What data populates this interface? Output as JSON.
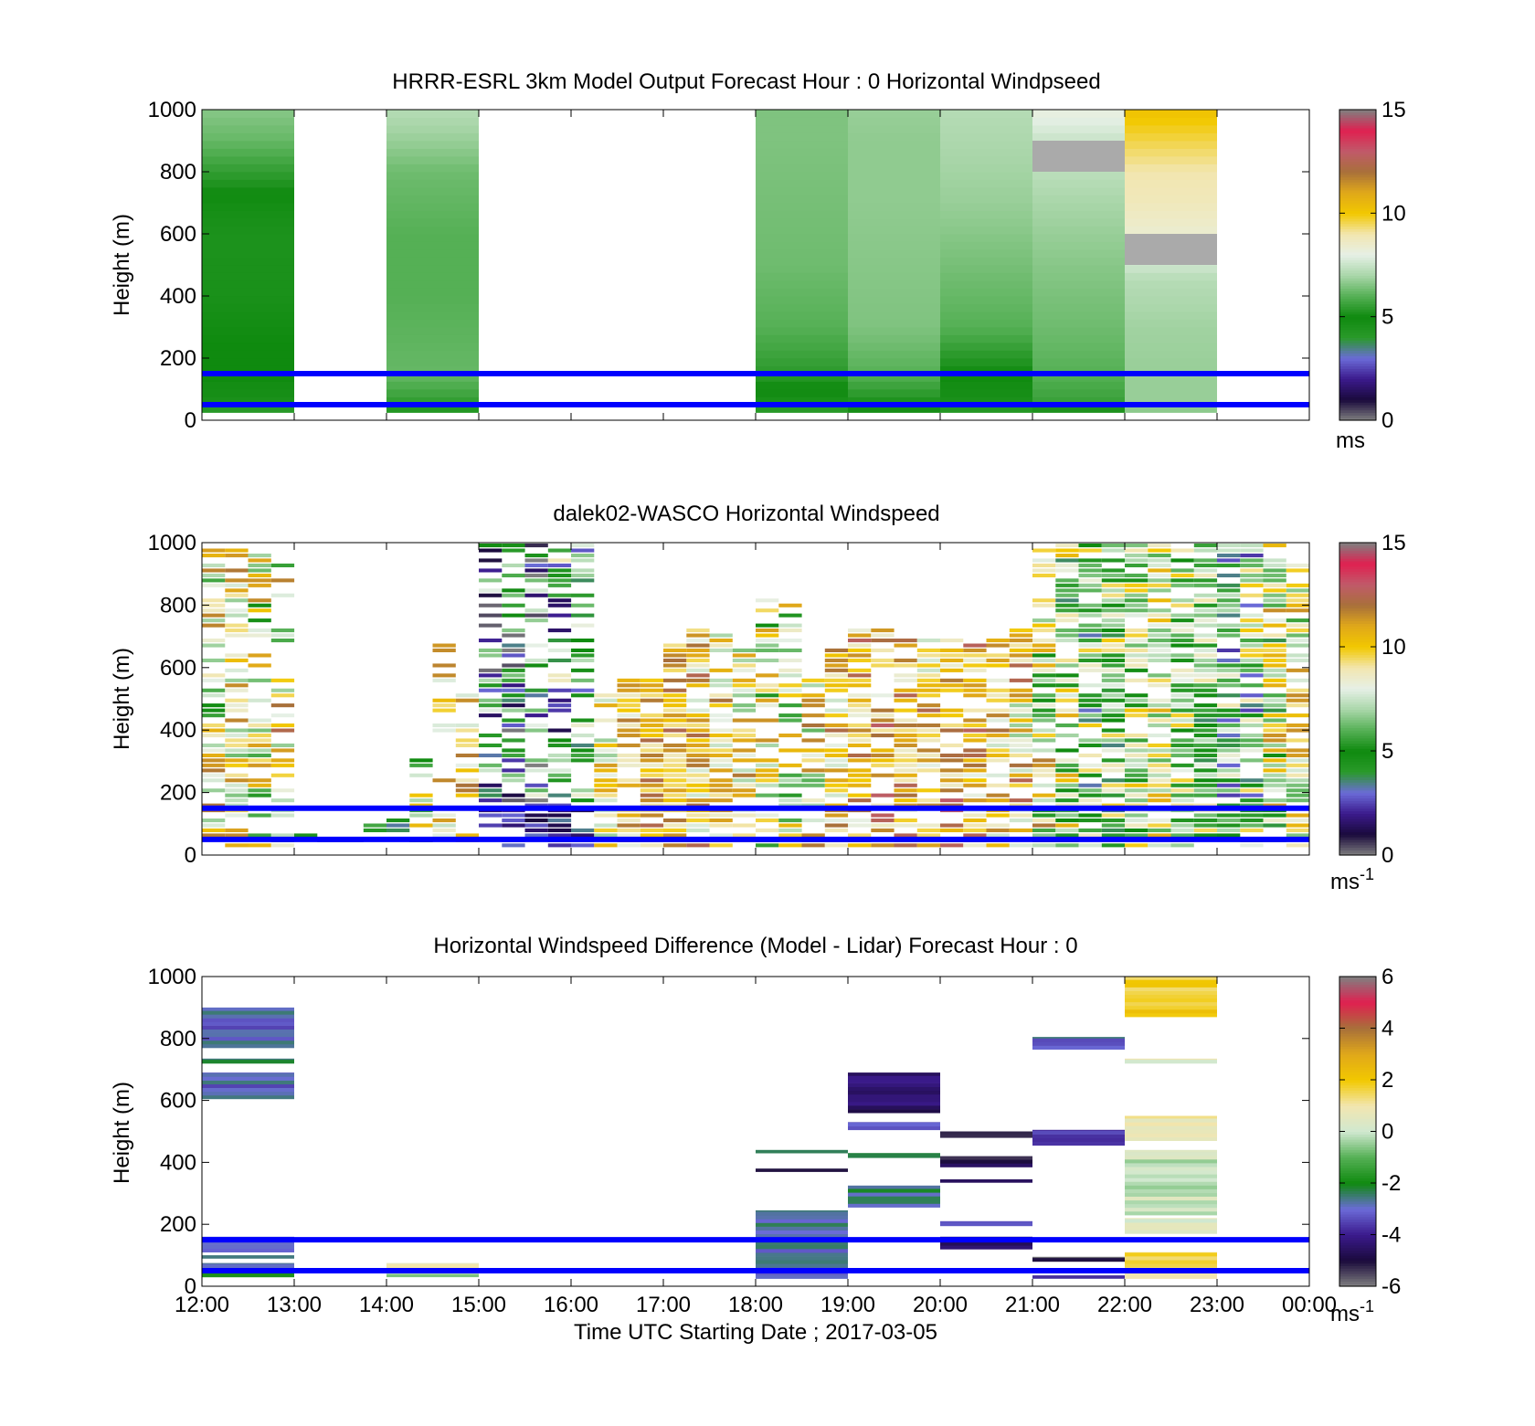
{
  "figure": {
    "xlabel": "Time UTC  Starting Date ; 2017-03-05",
    "x_ticks": [
      "12:00",
      "13:00",
      "14:00",
      "15:00",
      "16:00",
      "17:00",
      "18:00",
      "19:00",
      "20:00",
      "21:00",
      "22:00",
      "23:00",
      "00:00"
    ],
    "boundary_lines_m": [
      50,
      150
    ],
    "boundary_line_color": "#0000ff"
  },
  "colormap_windspeed": [
    "#808080",
    "#1a0a3c",
    "#3b1a8c",
    "#6b6bd8",
    "#2a9a2a",
    "#0f8a0f",
    "#55b055",
    "#a9d6a9",
    "#e6f0e6",
    "#f2e6b0",
    "#f2c800",
    "#e0a81a",
    "#a8703a",
    "#c05a6a",
    "#e02050",
    "#808080"
  ],
  "colormap_difference": [
    "#808080",
    "#1a0a3c",
    "#3b1a8c",
    "#6b6bd8",
    "#0f8a0f",
    "#55b055",
    "#d0e8d0",
    "#f2e6b0",
    "#f2c800",
    "#e0a81a",
    "#a8703a",
    "#e02050",
    "#808080"
  ],
  "chart_data": [
    {
      "type": "heatmap",
      "title": "HRRR-ESRL 3km Model Output   Forecast Hour : 0 Horizontal Windpseed",
      "ylabel": "Height (m)",
      "ylim": [
        0,
        1000
      ],
      "yticks": [
        0,
        200,
        400,
        600,
        800,
        1000
      ],
      "xlim_hours": [
        12,
        24
      ],
      "colorbar": {
        "min": 0,
        "max": 15,
        "ticks": [
          "0",
          "5",
          "10",
          "15"
        ],
        "unit": "ms"
      },
      "columns": [
        {
          "t0": 12,
          "t1": 13,
          "z0": 25,
          "z1": 1000,
          "profile": [
            [
              25,
              3.8
            ],
            [
              60,
              4.6
            ],
            [
              150,
              5.0
            ],
            [
              250,
              5.0
            ],
            [
              400,
              4.6
            ],
            [
              600,
              4.5
            ],
            [
              700,
              4.8
            ],
            [
              800,
              5.5
            ],
            [
              900,
              6.2
            ],
            [
              1000,
              6.6
            ]
          ]
        },
        {
          "t0": 14,
          "t1": 15,
          "z0": 25,
          "z1": 1000,
          "profile": [
            [
              25,
              3.5
            ],
            [
              60,
              5.5
            ],
            [
              150,
              6.2
            ],
            [
              400,
              6.0
            ],
            [
              600,
              6.0
            ],
            [
              800,
              6.3
            ],
            [
              900,
              6.8
            ],
            [
              1000,
              7.2
            ]
          ]
        },
        {
          "t0": 18,
          "t1": 19,
          "z0": 25,
          "z1": 1000,
          "profile": [
            [
              25,
              3.8
            ],
            [
              60,
              4.6
            ],
            [
              150,
              5.4
            ],
            [
              300,
              6.0
            ],
            [
              500,
              6.3
            ],
            [
              700,
              6.4
            ],
            [
              900,
              6.5
            ],
            [
              1000,
              6.5
            ]
          ]
        },
        {
          "t0": 19,
          "t1": 20,
          "z0": 25,
          "z1": 1000,
          "profile": [
            [
              25,
              4.5
            ],
            [
              60,
              5.2
            ],
            [
              150,
              6.0
            ],
            [
              300,
              6.5
            ],
            [
              500,
              6.6
            ],
            [
              700,
              6.7
            ],
            [
              900,
              6.7
            ],
            [
              1000,
              6.8
            ]
          ]
        },
        {
          "t0": 20,
          "t1": 21,
          "z0": 25,
          "z1": 1000,
          "profile": [
            [
              25,
              4.0
            ],
            [
              60,
              4.6
            ],
            [
              150,
              5.0
            ],
            [
              300,
              6.0
            ],
            [
              500,
              6.4
            ],
            [
              700,
              6.8
            ],
            [
              850,
              7.0
            ],
            [
              1000,
              7.2
            ]
          ]
        },
        {
          "t0": 21,
          "t1": 22,
          "z0": 25,
          "z1": 1000,
          "profile": [
            [
              25,
              5.0
            ],
            [
              60,
              5.6
            ],
            [
              150,
              6.0
            ],
            [
              300,
              6.3
            ],
            [
              500,
              6.6
            ],
            [
              700,
              7.0
            ],
            [
              800,
              7.3
            ],
            [
              900,
              7.5
            ],
            [
              1000,
              8.2
            ]
          ]
        },
        {
          "t0": 22,
          "t1": 23,
          "z0": 25,
          "z1": 1000,
          "profile": [
            [
              25,
              6.6
            ],
            [
              60,
              6.8
            ],
            [
              150,
              6.8
            ],
            [
              300,
              6.9
            ],
            [
              450,
              7.2
            ],
            [
              600,
              8.4
            ],
            [
              700,
              8.8
            ],
            [
              800,
              9.0
            ],
            [
              900,
              9.6
            ],
            [
              1000,
              10.2
            ]
          ]
        }
      ],
      "missing_cells": [
        {
          "t0": 21,
          "t1": 22,
          "z0": 800,
          "z1": 900
        },
        {
          "t0": 22,
          "t1": 23,
          "z0": 500,
          "z1": 600
        }
      ]
    },
    {
      "type": "heatmap",
      "title": "dalek02-WASCO  Horizontal Windspeed",
      "ylabel": "Height (m)",
      "ylim": [
        0,
        1000
      ],
      "yticks": [
        0,
        200,
        400,
        600,
        800,
        1000
      ],
      "xlim_hours": [
        12,
        24
      ],
      "colorbar": {
        "min": 0,
        "max": 15,
        "ticks": [
          "0",
          "5",
          "10",
          "15"
        ],
        "unit": "ms-1"
      },
      "column_minutes": 15,
      "row_step_m": 16,
      "columns": [
        {
          "t": 12.0,
          "top": 980,
          "base": 8.5,
          "var": 3.5,
          "fill": 0.65
        },
        {
          "t": 12.25,
          "top": 990,
          "base": 9.0,
          "var": 3.0,
          "fill": 0.7
        },
        {
          "t": 12.5,
          "top": 960,
          "base": 8.0,
          "var": 3.5,
          "fill": 0.6
        },
        {
          "t": 12.75,
          "top": 930,
          "base": 9.0,
          "var": 3.5,
          "fill": 0.45
        },
        {
          "t": 13.0,
          "top": 80,
          "base": 4.0,
          "var": 1.5,
          "fill": 0.6
        },
        {
          "t": 13.25,
          "top": 60,
          "base": 3.5,
          "var": 1.5,
          "fill": 0.5
        },
        {
          "t": 13.5,
          "top": 70,
          "base": 4.5,
          "var": 1.5,
          "fill": 0.6
        },
        {
          "t": 13.75,
          "top": 100,
          "base": 4.5,
          "var": 1.5,
          "fill": 0.6
        },
        {
          "t": 14.0,
          "top": 110,
          "base": 4.5,
          "var": 1.5,
          "fill": 0.6
        },
        {
          "t": 14.25,
          "top": 300,
          "base": 7.5,
          "var": 3.0,
          "fill": 0.6
        },
        {
          "t": 14.5,
          "top": 700,
          "base": 9.5,
          "var": 2.5,
          "fill": 0.4
        },
        {
          "t": 14.75,
          "top": 520,
          "base": 9.5,
          "var": 2.5,
          "fill": 0.6
        },
        {
          "t": 15.0,
          "top": 990,
          "base": 4.0,
          "var": 4.0,
          "fill": 0.55
        },
        {
          "t": 15.25,
          "top": 990,
          "base": 3.5,
          "var": 4.0,
          "fill": 0.6
        },
        {
          "t": 15.5,
          "top": 990,
          "base": 4.0,
          "var": 4.5,
          "fill": 0.6
        },
        {
          "t": 15.75,
          "top": 990,
          "base": 5.0,
          "var": 4.0,
          "fill": 0.55
        },
        {
          "t": 16.0,
          "top": 990,
          "base": 5.5,
          "var": 3.0,
          "fill": 0.55
        },
        {
          "t": 16.25,
          "top": 520,
          "base": 9.0,
          "var": 2.5,
          "fill": 0.7
        },
        {
          "t": 16.5,
          "top": 560,
          "base": 10.0,
          "var": 2.0,
          "fill": 0.8
        },
        {
          "t": 16.75,
          "top": 580,
          "base": 10.5,
          "var": 2.0,
          "fill": 0.85
        },
        {
          "t": 17.0,
          "top": 680,
          "base": 10.5,
          "var": 2.0,
          "fill": 0.85
        },
        {
          "t": 17.25,
          "top": 720,
          "base": 10.0,
          "var": 2.5,
          "fill": 0.85
        },
        {
          "t": 17.5,
          "top": 700,
          "base": 9.5,
          "var": 2.5,
          "fill": 0.75
        },
        {
          "t": 17.75,
          "top": 660,
          "base": 9.0,
          "var": 3.0,
          "fill": 0.65
        },
        {
          "t": 18.0,
          "top": 820,
          "base": 8.5,
          "var": 3.5,
          "fill": 0.55
        },
        {
          "t": 18.25,
          "top": 800,
          "base": 8.0,
          "var": 3.5,
          "fill": 0.5
        },
        {
          "t": 18.5,
          "top": 580,
          "base": 9.0,
          "var": 3.0,
          "fill": 0.55
        },
        {
          "t": 18.75,
          "top": 700,
          "base": 10.0,
          "var": 2.5,
          "fill": 0.7
        },
        {
          "t": 19.0,
          "top": 720,
          "base": 10.5,
          "var": 2.5,
          "fill": 0.8
        },
        {
          "t": 19.25,
          "top": 720,
          "base": 10.5,
          "var": 2.5,
          "fill": 0.75
        },
        {
          "t": 19.5,
          "top": 720,
          "base": 10.5,
          "var": 2.5,
          "fill": 0.75
        },
        {
          "t": 19.75,
          "top": 720,
          "base": 10.0,
          "var": 2.5,
          "fill": 0.75
        },
        {
          "t": 20.0,
          "top": 690,
          "base": 10.5,
          "var": 2.5,
          "fill": 0.75
        },
        {
          "t": 20.25,
          "top": 680,
          "base": 10.5,
          "var": 2.5,
          "fill": 0.75
        },
        {
          "t": 20.5,
          "top": 720,
          "base": 10.0,
          "var": 2.5,
          "fill": 0.75
        },
        {
          "t": 20.75,
          "top": 760,
          "base": 9.5,
          "var": 3.0,
          "fill": 0.7
        },
        {
          "t": 21.0,
          "top": 980,
          "base": 8.0,
          "var": 4.0,
          "fill": 0.65
        },
        {
          "t": 21.25,
          "top": 990,
          "base": 7.5,
          "var": 4.0,
          "fill": 0.7
        },
        {
          "t": 21.5,
          "top": 990,
          "base": 6.5,
          "var": 3.5,
          "fill": 0.8
        },
        {
          "t": 21.75,
          "top": 990,
          "base": 6.5,
          "var": 3.5,
          "fill": 0.85
        },
        {
          "t": 22.0,
          "top": 990,
          "base": 7.5,
          "var": 3.0,
          "fill": 0.85
        },
        {
          "t": 22.25,
          "top": 990,
          "base": 8.5,
          "var": 2.5,
          "fill": 0.85
        },
        {
          "t": 22.5,
          "top": 990,
          "base": 7.0,
          "var": 3.0,
          "fill": 0.85
        },
        {
          "t": 22.75,
          "top": 990,
          "base": 6.5,
          "var": 3.0,
          "fill": 0.85
        },
        {
          "t": 23.0,
          "top": 990,
          "base": 5.5,
          "var": 3.5,
          "fill": 0.85
        },
        {
          "t": 23.25,
          "top": 990,
          "base": 6.0,
          "var": 4.0,
          "fill": 0.85
        },
        {
          "t": 23.5,
          "top": 990,
          "base": 7.5,
          "var": 4.0,
          "fill": 0.85
        },
        {
          "t": 23.75,
          "top": 930,
          "base": 8.5,
          "var": 3.0,
          "fill": 0.75
        }
      ]
    },
    {
      "type": "heatmap",
      "title": "Horizontal Windspeed Difference (Model - Lidar) Forecast Hour : 0",
      "ylabel": "Height (m)",
      "ylim": [
        0,
        1000
      ],
      "yticks": [
        0,
        200,
        400,
        600,
        800,
        1000
      ],
      "xlim_hours": [
        12,
        24
      ],
      "colorbar": {
        "min": -6,
        "max": 6,
        "ticks": [
          "-6",
          "-4",
          "-2",
          "0",
          "2",
          "4",
          "6"
        ],
        "unit": "ms-1"
      },
      "bands": [
        {
          "t0": 12,
          "t1": 13,
          "z0": 770,
          "z1": 900,
          "v": -3.0
        },
        {
          "t0": 12,
          "t1": 13,
          "z0": 720,
          "z1": 735,
          "v": -2.5
        },
        {
          "t0": 12,
          "t1": 13,
          "z0": 605,
          "z1": 690,
          "v": -3.0
        },
        {
          "t0": 12,
          "t1": 13,
          "z0": 110,
          "z1": 160,
          "v": -3.2
        },
        {
          "t0": 12,
          "t1": 13,
          "z0": 90,
          "z1": 100,
          "v": -2.5
        },
        {
          "t0": 12,
          "t1": 13,
          "z0": 60,
          "z1": 75,
          "v": -3.0
        },
        {
          "t0": 12,
          "t1": 13,
          "z0": 30,
          "z1": 45,
          "v": -1.5
        },
        {
          "t0": 14,
          "t1": 15,
          "z0": 60,
          "z1": 75,
          "v": 0.8
        },
        {
          "t0": 14,
          "t1": 15,
          "z0": 30,
          "z1": 40,
          "v": -1.0
        },
        {
          "t0": 18,
          "t1": 19,
          "z0": 430,
          "z1": 440,
          "v": -2.5
        },
        {
          "t0": 18,
          "t1": 19,
          "z0": 370,
          "z1": 380,
          "v": -5.0
        },
        {
          "t0": 18,
          "t1": 19,
          "z0": 25,
          "z1": 245,
          "v": -2.8
        },
        {
          "t0": 19,
          "t1": 20,
          "z0": 560,
          "z1": 690,
          "v": -4.5
        },
        {
          "t0": 19,
          "t1": 20,
          "z0": 505,
          "z1": 530,
          "v": -3.0
        },
        {
          "t0": 19,
          "t1": 20,
          "z0": 415,
          "z1": 430,
          "v": -2.5
        },
        {
          "t0": 19,
          "t1": 20,
          "z0": 255,
          "z1": 325,
          "v": -2.5
        },
        {
          "t0": 20,
          "t1": 21,
          "z0": 480,
          "z1": 500,
          "v": -5.0
        },
        {
          "t0": 20,
          "t1": 21,
          "z0": 385,
          "z1": 420,
          "v": -5.0
        },
        {
          "t0": 20,
          "t1": 21,
          "z0": 335,
          "z1": 345,
          "v": -5.0
        },
        {
          "t0": 20,
          "t1": 21,
          "z0": 195,
          "z1": 210,
          "v": -3.0
        },
        {
          "t0": 20,
          "t1": 21,
          "z0": 120,
          "z1": 160,
          "v": -4.5
        },
        {
          "t0": 21,
          "t1": 22,
          "z0": 765,
          "z1": 805,
          "v": -3.0
        },
        {
          "t0": 21,
          "t1": 22,
          "z0": 455,
          "z1": 505,
          "v": -3.8
        },
        {
          "t0": 21,
          "t1": 22,
          "z0": 80,
          "z1": 95,
          "v": -5.5
        },
        {
          "t0": 21,
          "t1": 22,
          "z0": 25,
          "z1": 35,
          "v": -4.0
        },
        {
          "t0": 22,
          "t1": 23,
          "z0": 870,
          "z1": 1000,
          "v": 1.8
        },
        {
          "t0": 22,
          "t1": 23,
          "z0": 720,
          "z1": 735,
          "v": 0.5
        },
        {
          "t0": 22,
          "t1": 23,
          "z0": 470,
          "z1": 550,
          "v": 1.0
        },
        {
          "t0": 22,
          "t1": 23,
          "z0": 230,
          "z1": 440,
          "v": 0.0
        },
        {
          "t0": 22,
          "t1": 23,
          "z0": 170,
          "z1": 220,
          "v": 0.5
        },
        {
          "t0": 22,
          "t1": 23,
          "z0": 25,
          "z1": 110,
          "v": 1.5
        }
      ]
    }
  ]
}
